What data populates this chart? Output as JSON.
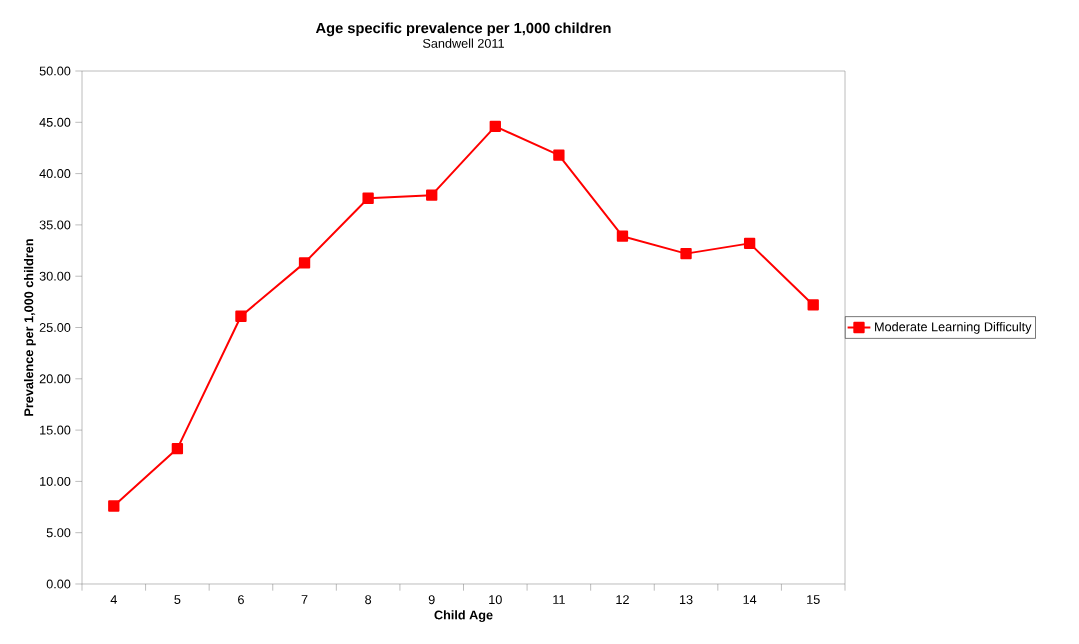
{
  "chart_data": {
    "type": "line",
    "title": "Age specific prevalence per 1,000 children",
    "subtitle": "Sandwell 2011",
    "xlabel": "Child Age",
    "ylabel": "Prevalence per 1,000 children",
    "categories": [
      "4",
      "5",
      "6",
      "7",
      "8",
      "9",
      "10",
      "11",
      "12",
      "13",
      "14",
      "15"
    ],
    "series": [
      {
        "name": "Moderate Learning Difficulty",
        "color": "#ff0000",
        "values": [
          7.6,
          13.2,
          26.1,
          31.3,
          37.6,
          37.9,
          44.6,
          41.8,
          33.9,
          32.2,
          33.2,
          27.2
        ]
      }
    ],
    "ylim": [
      0,
      50
    ],
    "yticks": [
      {
        "value": 0,
        "label": "0.00"
      },
      {
        "value": 5,
        "label": "5.00"
      },
      {
        "value": 10,
        "label": "10.00"
      },
      {
        "value": 15,
        "label": "15.00"
      },
      {
        "value": 20,
        "label": "20.00"
      },
      {
        "value": 25,
        "label": "25.00"
      },
      {
        "value": 30,
        "label": "30.00"
      },
      {
        "value": 35,
        "label": "35.00"
      },
      {
        "value": 40,
        "label": "40.00"
      },
      {
        "value": 45,
        "label": "45.00"
      },
      {
        "value": 50,
        "label": "50.00"
      }
    ],
    "grid": false,
    "legend": "right",
    "marker": "square",
    "line_style": "solid"
  }
}
